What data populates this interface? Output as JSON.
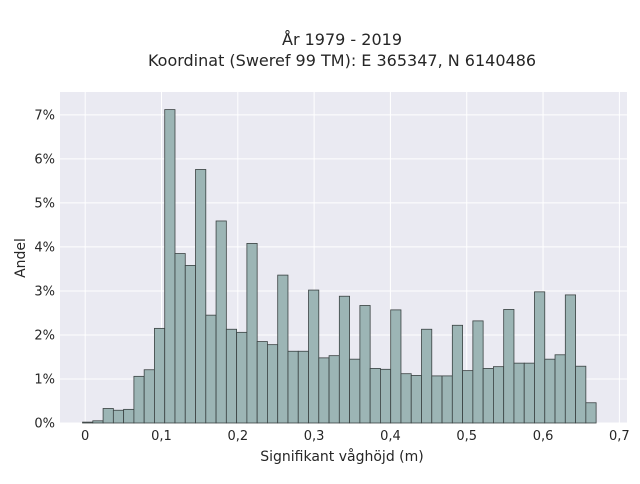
{
  "chart_data": {
    "type": "bar",
    "title": "År 1979 - 2019",
    "subtitle": "Koordinat (Sweref 99 TM): E 365347, N 6140486",
    "xlabel": "Signifikant våghöjd (m)",
    "ylabel": "Andel",
    "xlim": [
      -0.033,
      0.71
    ],
    "ylim": [
      0,
      0.0752
    ],
    "bin_width": 0.01346,
    "bins_start": -0.00346,
    "x_ticks": [
      0,
      0.1,
      0.2,
      0.3,
      0.4,
      0.5,
      0.6,
      0.7
    ],
    "x_tick_labels": [
      "0",
      "0,1",
      "0,2",
      "0,3",
      "0,4",
      "0,5",
      "0,6",
      "0,7"
    ],
    "y_ticks": [
      0,
      0.01,
      0.02,
      0.03,
      0.04,
      0.05,
      0.06,
      0.07
    ],
    "y_tick_labels": [
      "0%",
      "1%",
      "2%",
      "3%",
      "4%",
      "5%",
      "6%",
      "7%"
    ],
    "values": [
      0.0002,
      0.0005,
      0.0033,
      0.0029,
      0.0031,
      0.0106,
      0.0121,
      0.0215,
      0.0712,
      0.0385,
      0.0358,
      0.0576,
      0.0245,
      0.0459,
      0.0213,
      0.0206,
      0.0408,
      0.0185,
      0.0178,
      0.0336,
      0.0163,
      0.0163,
      0.0302,
      0.0148,
      0.0153,
      0.0288,
      0.0145,
      0.0267,
      0.0124,
      0.0122,
      0.0257,
      0.0112,
      0.0108,
      0.0213,
      0.0107,
      0.0107,
      0.0222,
      0.0119,
      0.0232,
      0.0124,
      0.0128,
      0.0258,
      0.0136,
      0.0136,
      0.0298,
      0.0145,
      0.0155,
      0.0291,
      0.0129,
      0.0046
    ],
    "grid": true,
    "legend": "none",
    "colors": {
      "bar_fill": "#9cb5b5",
      "bar_edge": "#3a4242",
      "plot_bg": "#eaeaf2",
      "grid": "#ffffff"
    }
  }
}
